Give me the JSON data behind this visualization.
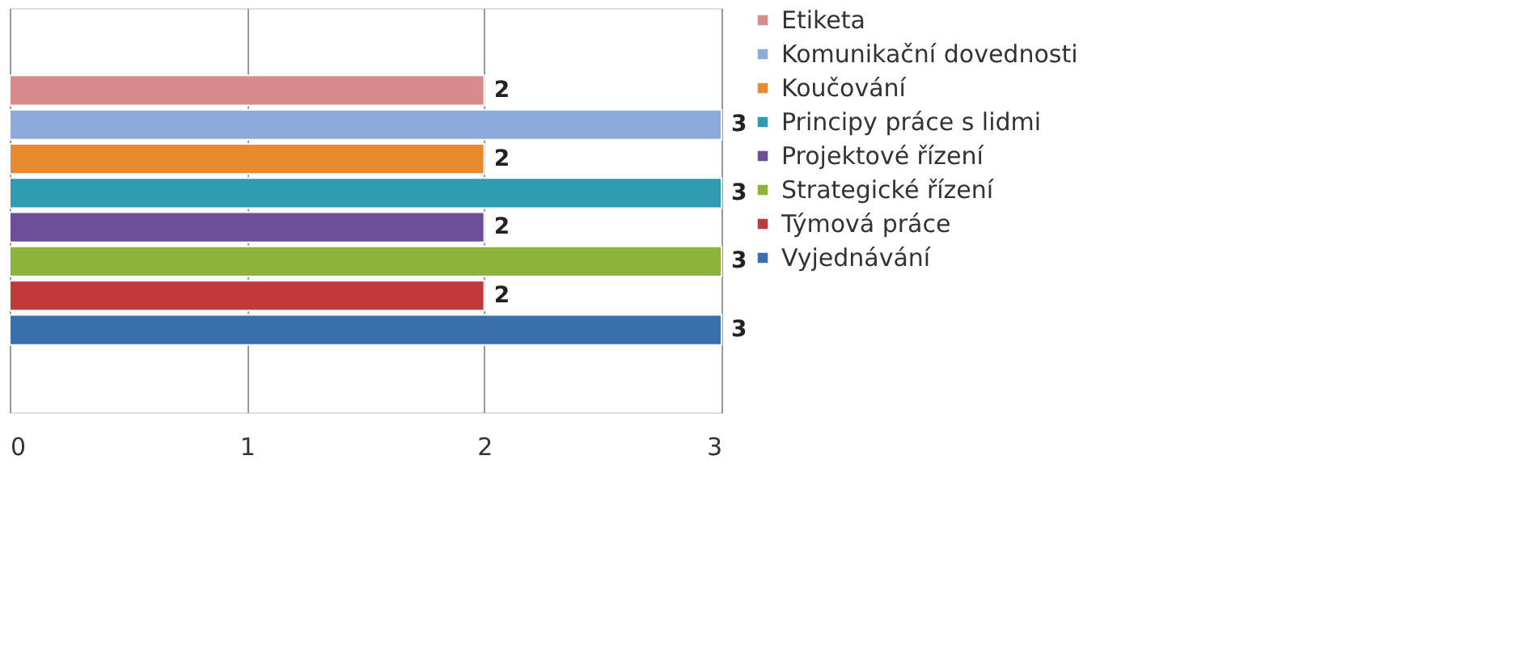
{
  "chart_data": {
    "type": "bar",
    "orientation": "horizontal",
    "categories": [
      null
    ],
    "series": [
      {
        "name": "Etiketa",
        "color": "#d98b8b",
        "values": [
          2
        ]
      },
      {
        "name": "Komunikační dovednosti",
        "color": "#8eaadb",
        "values": [
          3
        ]
      },
      {
        "name": "Koučování",
        "color": "#e88a2e",
        "values": [
          2
        ]
      },
      {
        "name": "Principy práce s lidmi",
        "color": "#2e9bb0",
        "values": [
          3
        ]
      },
      {
        "name": "Projektové řízení",
        "color": "#6e4f97",
        "values": [
          2
        ]
      },
      {
        "name": "Strategické řízení",
        "color": "#8db33a",
        "values": [
          3
        ]
      },
      {
        "name": "Týmová práce",
        "color": "#c0393b",
        "values": [
          2
        ]
      },
      {
        "name": "Vyjednávání",
        "color": "#3a6fae",
        "values": [
          3
        ]
      }
    ],
    "xlim": [
      0,
      3
    ],
    "xticks": [
      0,
      1,
      2,
      3
    ],
    "grid": "x",
    "legend": "right",
    "data_labels": true,
    "tick_labels": "x"
  }
}
